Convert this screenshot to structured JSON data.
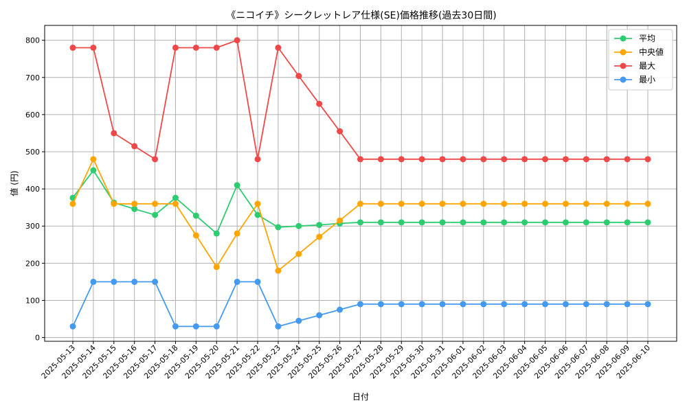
{
  "chart_data": {
    "type": "line",
    "title": "《ニコイチ》シークレットレア仕様(SE)価格推移(過去30日間)",
    "xlabel": "日付",
    "ylabel": "値 (円)",
    "ylim": [
      -10,
      840
    ],
    "yticks": [
      0,
      100,
      200,
      300,
      400,
      500,
      600,
      700,
      800
    ],
    "grid": true,
    "legend_position": "top-right",
    "categories": [
      "2025-05-13",
      "2025-05-14",
      "2025-05-15",
      "2025-05-16",
      "2025-05-17",
      "2025-05-18",
      "2025-05-19",
      "2025-05-20",
      "2025-05-21",
      "2025-05-22",
      "2025-05-23",
      "2025-05-24",
      "2025-05-25",
      "2025-05-26",
      "2025-05-27",
      "2025-05-28",
      "2025-05-29",
      "2025-05-30",
      "2025-05-31",
      "2025-06-01",
      "2025-06-02",
      "2025-06-03",
      "2025-06-04",
      "2025-06-05",
      "2025-06-06",
      "2025-06-07",
      "2025-06-08",
      "2025-06-09",
      "2025-06-10"
    ],
    "series": [
      {
        "name": "平均",
        "color": "#2ecc71",
        "values": [
          376,
          450,
          363,
          346,
          330,
          376,
          328,
          280,
          410,
          330,
          297,
          300,
          303,
          307,
          310,
          310,
          310,
          310,
          310,
          310,
          310,
          310,
          310,
          310,
          310,
          310,
          310,
          310,
          310
        ]
      },
      {
        "name": "中央値",
        "color": "#ffa500",
        "values": [
          360,
          480,
          360,
          360,
          360,
          360,
          275,
          190,
          280,
          360,
          180,
          225,
          271,
          315,
          360,
          360,
          360,
          360,
          360,
          360,
          360,
          360,
          360,
          360,
          360,
          360,
          360,
          360,
          360
        ]
      },
      {
        "name": "最大",
        "color": "#f04848",
        "values": [
          780,
          780,
          550,
          515,
          480,
          780,
          780,
          780,
          800,
          480,
          780,
          704,
          629,
          555,
          480,
          480,
          480,
          480,
          480,
          480,
          480,
          480,
          480,
          480,
          480,
          480,
          480,
          480,
          480
        ]
      },
      {
        "name": "最小",
        "color": "#4499f0",
        "values": [
          30,
          150,
          150,
          150,
          150,
          30,
          30,
          30,
          150,
          150,
          30,
          45,
          60,
          75,
          90,
          90,
          90,
          90,
          90,
          90,
          90,
          90,
          90,
          90,
          90,
          90,
          90,
          90,
          90
        ]
      }
    ]
  }
}
